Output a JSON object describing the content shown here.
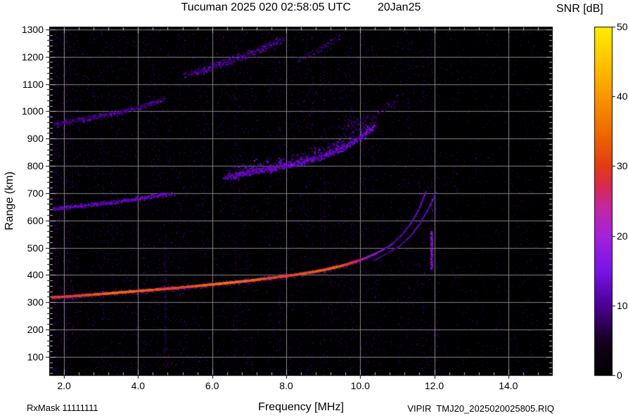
{
  "header": {
    "title": "Tucuman 2025 020 02:58:05 UTC",
    "date": "20Jan25"
  },
  "colorbar": {
    "title": "SNR [dB]",
    "min": 0,
    "max": 50,
    "ticks": [
      0,
      10,
      20,
      30,
      40,
      50
    ]
  },
  "axes": {
    "x_label": "Frequency [MHz]",
    "y_label": "Range (km)"
  },
  "footer": {
    "rx_mask": "RxMask 11111111",
    "file": "VIPIR  TMJ20_2025020025805.RIQ"
  },
  "chart_data": {
    "type": "heatmap",
    "title": "Tucuman 2025 020 02:58:05 UTC",
    "date": "20Jan25",
    "xlabel": "Frequency [MHz]",
    "ylabel": "Range (km)",
    "colorbar_label": "SNR [dB]",
    "x_range": [
      1.6,
      15.2
    ],
    "y_range": [
      30,
      1310
    ],
    "z_range": [
      0,
      50
    ],
    "x_tick_values": [
      2,
      4,
      6,
      8,
      10,
      12,
      14
    ],
    "x_tick_labels": [
      "2.0",
      "4.0",
      "6.0",
      "8.0",
      "10.0",
      "12.0",
      "14.0"
    ],
    "x_minor_step": 0.4,
    "y_tick_values": [
      100,
      200,
      300,
      400,
      500,
      600,
      700,
      800,
      900,
      1000,
      1100,
      1200,
      1300
    ],
    "y_tick_labels": [
      "100",
      "200",
      "300",
      "400",
      "500",
      "600",
      "700",
      "800",
      "900",
      "1000",
      "1100",
      "1200",
      "1300"
    ],
    "y_minor_step": 20,
    "colorbar_ticks": [
      0,
      10,
      20,
      30,
      40,
      50
    ],
    "grid_on": true,
    "grid_color": "#858585",
    "colormap": [
      [
        0,
        "#000000"
      ],
      [
        5,
        "#16001f"
      ],
      [
        10,
        "#4b0095"
      ],
      [
        15,
        "#7a14e8"
      ],
      [
        20,
        "#a422dc"
      ],
      [
        24,
        "#c428a4"
      ],
      [
        27,
        "#d62a55"
      ],
      [
        30,
        "#e23b16"
      ],
      [
        35,
        "#ef6c00"
      ],
      [
        40,
        "#f99600"
      ],
      [
        45,
        "#ffc400"
      ],
      [
        50,
        "#ffee00"
      ]
    ],
    "noise": {
      "base_density": 0.1,
      "max_snr": 13,
      "bands": [
        [
          1.6,
          2.3,
          1.5
        ],
        [
          7.15,
          7.5,
          0.45
        ],
        [
          10.55,
          11.1,
          0.6
        ],
        [
          12.15,
          15.2,
          0.42
        ]
      ]
    },
    "rfi_stripes": [
      {
        "f": 1.78,
        "width": 5,
        "r": [
          40,
          1300
        ],
        "density": 0.18,
        "snr": 6
      },
      {
        "f": 2.07,
        "width": 3,
        "r": [
          40,
          1300
        ],
        "density": 0.22,
        "snr": 7
      },
      {
        "f": 3.05,
        "width": 2,
        "r": [
          40,
          900
        ],
        "density": 0.15,
        "snr": 6
      },
      {
        "f": 4.72,
        "width": 3,
        "r": [
          60,
          560
        ],
        "density": 0.28,
        "snr": 8
      },
      {
        "f": 6.64,
        "width": 2,
        "r": [
          40,
          1300
        ],
        "density": 0.13,
        "snr": 6
      },
      {
        "f": 9.02,
        "width": 2,
        "r": [
          40,
          1300
        ],
        "density": 0.11,
        "snr": 6
      },
      {
        "f": 10.15,
        "width": 2,
        "r": [
          40,
          1300
        ],
        "density": 0.12,
        "snr": 6
      },
      {
        "f": 11.93,
        "width": 3,
        "r": [
          420,
          560
        ],
        "density": 0.9,
        "snr": 16
      },
      {
        "f": 11.93,
        "width": 2,
        "r": [
          600,
          680
        ],
        "density": 0.45,
        "snr": 12
      },
      {
        "f": 11.93,
        "width": 2,
        "r": [
          40,
          1300
        ],
        "density": 0.1,
        "snr": 6
      },
      {
        "f": 12.62,
        "width": 2,
        "r": [
          40,
          1300
        ],
        "density": 0.1,
        "snr": 5
      },
      {
        "f": 13.3,
        "width": 2,
        "r": [
          40,
          800
        ],
        "density": 0.08,
        "snr": 5
      }
    ],
    "traces": [
      {
        "name": "F-region-first-hop-O-mode",
        "core": true,
        "spread_km": 5,
        "snr_points": [
          [
            1.65,
            33
          ],
          [
            5,
            34
          ],
          [
            8,
            34
          ],
          [
            9.3,
            32
          ],
          [
            9.9,
            26
          ],
          [
            10.4,
            20
          ],
          [
            10.8,
            15
          ],
          [
            11.1,
            13
          ],
          [
            11.76,
            12
          ]
        ],
        "points": [
          [
            1.65,
            318
          ],
          [
            2,
            320
          ],
          [
            3,
            330
          ],
          [
            4,
            341
          ],
          [
            5,
            352
          ],
          [
            6,
            365
          ],
          [
            7,
            379
          ],
          [
            8,
            396
          ],
          [
            8.5,
            406
          ],
          [
            9,
            418
          ],
          [
            9.5,
            434
          ],
          [
            10,
            455
          ],
          [
            10.4,
            478
          ],
          [
            10.8,
            508
          ],
          [
            11.1,
            545
          ],
          [
            11.35,
            588
          ],
          [
            11.55,
            635
          ],
          [
            11.68,
            678
          ],
          [
            11.76,
            706
          ]
        ]
      },
      {
        "name": "F-region-first-hop-X-mode",
        "core": true,
        "thin": true,
        "spread_km": 3,
        "snr": 13,
        "points": [
          [
            10.35,
            452
          ],
          [
            10.7,
            478
          ],
          [
            11.05,
            505
          ],
          [
            11.35,
            542
          ],
          [
            11.6,
            588
          ],
          [
            11.8,
            635
          ],
          [
            11.95,
            676
          ],
          [
            12.04,
            704
          ]
        ]
      },
      {
        "name": "second-hop-low-freq",
        "density": 0.5,
        "spread_km": 7,
        "snr": 12,
        "points": [
          [
            1.65,
            644
          ],
          [
            2,
            648
          ],
          [
            2.5,
            655
          ],
          [
            3,
            663
          ],
          [
            3.5,
            671
          ],
          [
            4,
            681
          ],
          [
            4.5,
            692
          ],
          [
            5,
            702
          ]
        ]
      },
      {
        "name": "second-hop-mid-freq",
        "density": 0.85,
        "spread_km": 12,
        "up_spread": 34,
        "snr": 13,
        "points": [
          [
            6.3,
            756
          ],
          [
            7,
            776
          ],
          [
            7.5,
            789
          ],
          [
            8,
            801
          ],
          [
            8.5,
            817
          ],
          [
            9,
            839
          ],
          [
            9.5,
            866
          ],
          [
            9.8,
            887
          ],
          [
            10.1,
            915
          ],
          [
            10.45,
            952
          ]
        ]
      },
      {
        "name": "third-hop-low-freq",
        "density": 0.42,
        "spread_km": 9,
        "snr": 10,
        "points": [
          [
            1.65,
            952
          ],
          [
            2,
            960
          ],
          [
            2.5,
            972
          ],
          [
            3,
            985
          ],
          [
            3.5,
            999
          ],
          [
            4,
            1016
          ],
          [
            4.45,
            1034
          ],
          [
            4.75,
            1048
          ]
        ]
      },
      {
        "name": "third-hop-mid-freq",
        "density": 0.45,
        "spread_km": 15,
        "snr": 10,
        "points": [
          [
            5.15,
            1128
          ],
          [
            5.6,
            1148
          ],
          [
            6,
            1166
          ],
          [
            6.5,
            1188
          ],
          [
            7,
            1212
          ],
          [
            7.5,
            1240
          ],
          [
            8,
            1274
          ]
        ]
      },
      {
        "name": "third-hop-high-freq",
        "density": 0.28,
        "spread_km": 13,
        "snr": 8,
        "points": [
          [
            8.2,
            1180
          ],
          [
            8.7,
            1216
          ],
          [
            9.2,
            1254
          ],
          [
            9.55,
            1282
          ]
        ]
      },
      {
        "name": "spread-F-patch",
        "density": 0.25,
        "spread_km": 22,
        "snr": 8,
        "points": [
          [
            9.4,
            930
          ],
          [
            9.9,
            958
          ],
          [
            10.35,
            990
          ],
          [
            10.8,
            1030
          ],
          [
            11.1,
            1058
          ]
        ]
      }
    ]
  }
}
